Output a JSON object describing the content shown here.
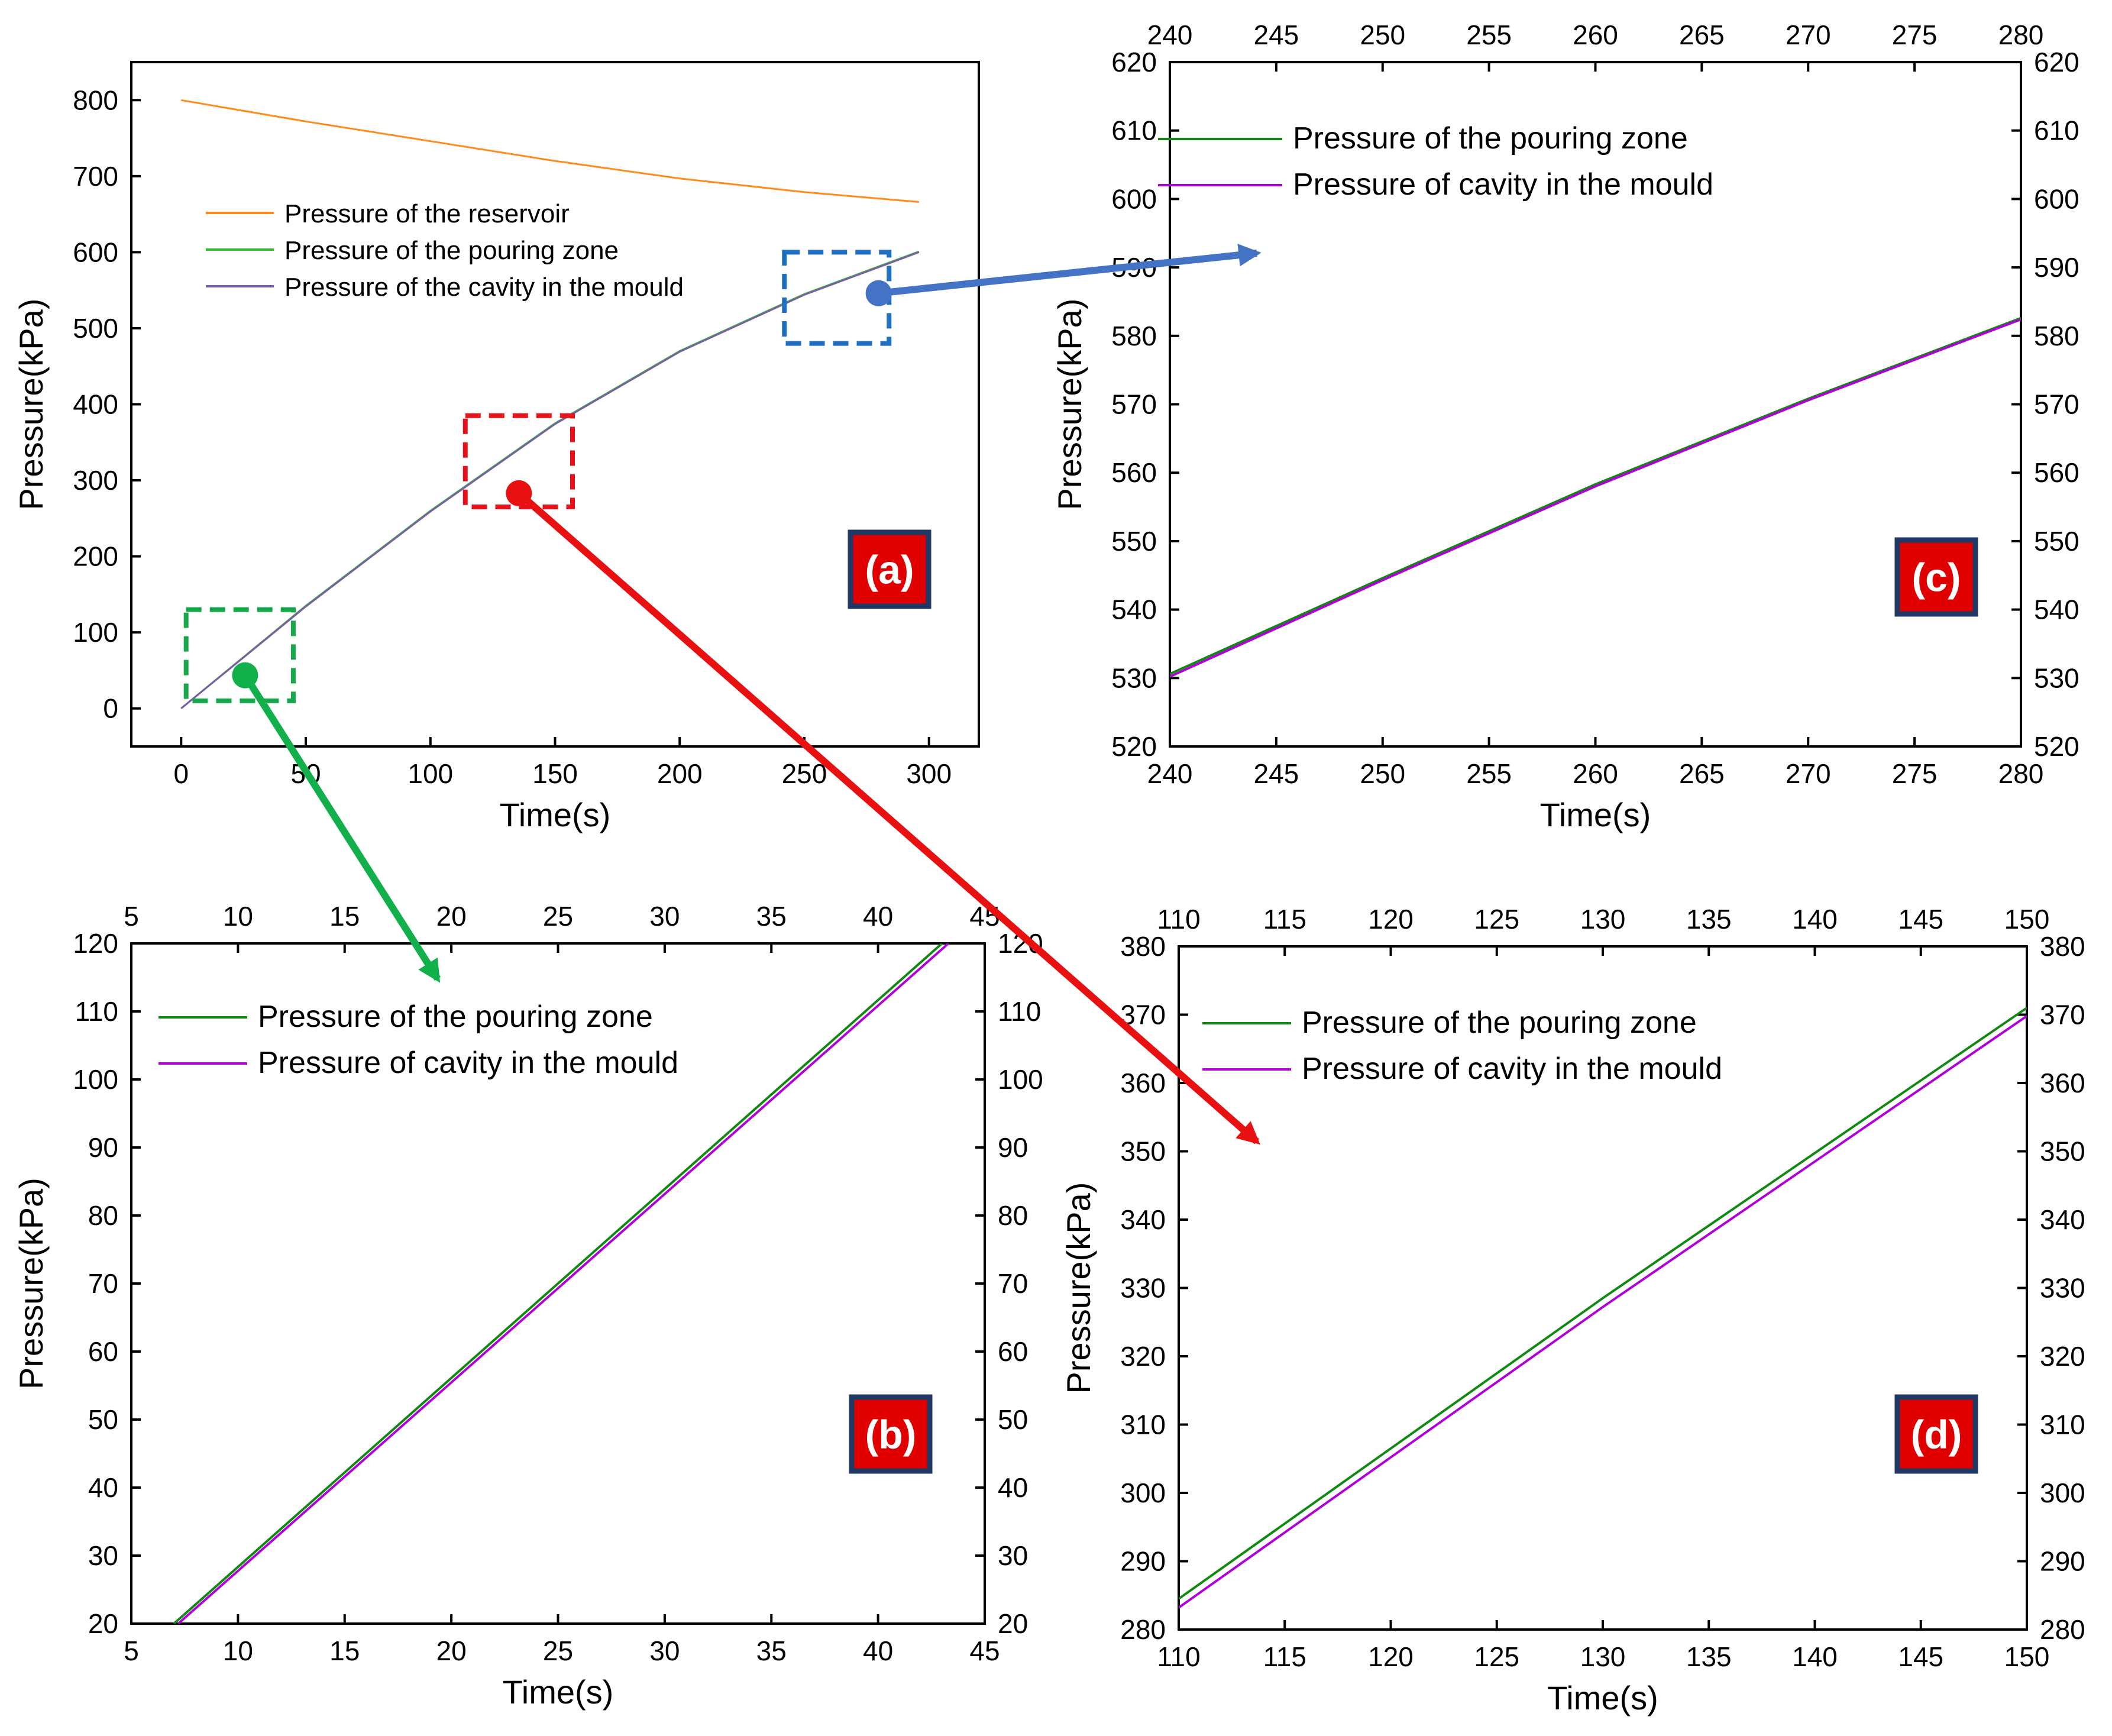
{
  "colors": {
    "reservoir": "#ff8c1a",
    "pouring_zone_a": "#33bb33",
    "cavity_a": "#7a5ca8",
    "pouring_zone": "#118811",
    "cavity": "#b000d8",
    "box_green": "#16a84a",
    "box_red": "#e8101a",
    "box_blue": "#1f70c1",
    "arrow_green": "#12b04a",
    "arrow_red": "#e81010",
    "arrow_blue": "#4472c4",
    "badge_bg": "#e00000",
    "badge_border": "#1f3864"
  },
  "chart_data": [
    {
      "id": "a",
      "type": "line",
      "badge": "(a)",
      "xlabel": "Time(s)",
      "ylabel": "Pressure(kPa)",
      "xlim": [
        -20,
        320
      ],
      "ylim": [
        -50,
        850
      ],
      "xticks": [
        0,
        50,
        100,
        150,
        200,
        250,
        300
      ],
      "yticks": [
        0,
        100,
        200,
        300,
        400,
        500,
        600,
        700,
        800
      ],
      "mirror_axes": false,
      "series": [
        {
          "name": "Pressure of the reservoir",
          "color_key": "reservoir",
          "x": [
            0,
            50,
            100,
            150,
            200,
            250,
            296
          ],
          "y": [
            800,
            772,
            746,
            720,
            697,
            679,
            666
          ]
        },
        {
          "name": "Pressure of the pouring zone",
          "color_key": "pouring_zone_a",
          "x": [
            0,
            50,
            100,
            150,
            200,
            250,
            296
          ],
          "y": [
            0,
            135,
            260,
            375,
            470,
            545,
            601
          ]
        },
        {
          "name": "Pressure of the cavity in the mould",
          "color_key": "cavity_a",
          "x": [
            0,
            50,
            100,
            150,
            200,
            250,
            296
          ],
          "y": [
            0,
            134,
            259,
            374,
            469,
            544,
            600
          ]
        }
      ]
    },
    {
      "id": "b",
      "type": "line",
      "badge": "(b)",
      "xlabel": "Time(s)",
      "ylabel": "Pressure(kPa)",
      "xlim": [
        5,
        45
      ],
      "ylim": [
        20,
        120
      ],
      "xticks": [
        5,
        10,
        15,
        20,
        25,
        30,
        35,
        40,
        45
      ],
      "yticks": [
        20,
        30,
        40,
        50,
        60,
        70,
        80,
        90,
        100,
        110,
        120
      ],
      "mirror_axes": true,
      "series": [
        {
          "name": "Pressure of the pouring zone",
          "color_key": "pouring_zone",
          "x": [
            7,
            43
          ],
          "y": [
            20,
            120
          ]
        },
        {
          "name": "Pressure of cavity in the mould",
          "color_key": "cavity",
          "x": [
            7.2,
            43.3
          ],
          "y": [
            20,
            120
          ]
        }
      ]
    },
    {
      "id": "c",
      "type": "line",
      "badge": "(c)",
      "xlabel": "Time(s)",
      "ylabel": "Pressure(kPa)",
      "xlim": [
        240,
        280
      ],
      "ylim": [
        520,
        620
      ],
      "xticks": [
        240,
        245,
        250,
        255,
        260,
        265,
        270,
        275,
        280
      ],
      "yticks": [
        520,
        530,
        540,
        550,
        560,
        570,
        580,
        590,
        600,
        610,
        620
      ],
      "mirror_axes": true,
      "series": [
        {
          "name": "Pressure of the pouring zone",
          "color_key": "pouring_zone",
          "x": [
            240,
            250,
            260,
            270,
            280
          ],
          "y": [
            530.6,
            544.6,
            558.3,
            570.8,
            582.6
          ]
        },
        {
          "name": "Pressure of cavity in the mould",
          "color_key": "cavity",
          "x": [
            240,
            250,
            260,
            270,
            280
          ],
          "y": [
            530.2,
            544.3,
            558.0,
            570.6,
            582.4
          ]
        }
      ]
    },
    {
      "id": "d",
      "type": "line",
      "badge": "(d)",
      "xlabel": "Time(s)",
      "ylabel": "Pressure(kPa)",
      "xlim": [
        110,
        150
      ],
      "ylim": [
        280,
        380
      ],
      "xticks": [
        110,
        115,
        120,
        125,
        130,
        135,
        140,
        145,
        150
      ],
      "yticks": [
        280,
        290,
        300,
        310,
        320,
        330,
        340,
        350,
        360,
        370,
        380
      ],
      "mirror_axes": true,
      "series": [
        {
          "name": "Pressure of the pouring zone",
          "color_key": "pouring_zone",
          "x": [
            110,
            130,
            150
          ],
          "y": [
            284.5,
            328.5,
            371
          ]
        },
        {
          "name": "Pressure of cavity in the mould",
          "color_key": "cavity",
          "x": [
            110,
            130,
            150
          ],
          "y": [
            283.2,
            327.2,
            369.8
          ]
        }
      ]
    }
  ],
  "zoom_boxes": [
    {
      "id": "b",
      "color_key": "box_green",
      "x_range": [
        2,
        45
      ],
      "y_range": [
        10,
        130
      ]
    },
    {
      "id": "d",
      "color_key": "box_red",
      "x_range": [
        114,
        157
      ],
      "y_range": [
        265,
        385
      ]
    },
    {
      "id": "c",
      "color_key": "box_blue",
      "x_range": [
        242,
        284
      ],
      "y_range": [
        480,
        600
      ]
    }
  ]
}
